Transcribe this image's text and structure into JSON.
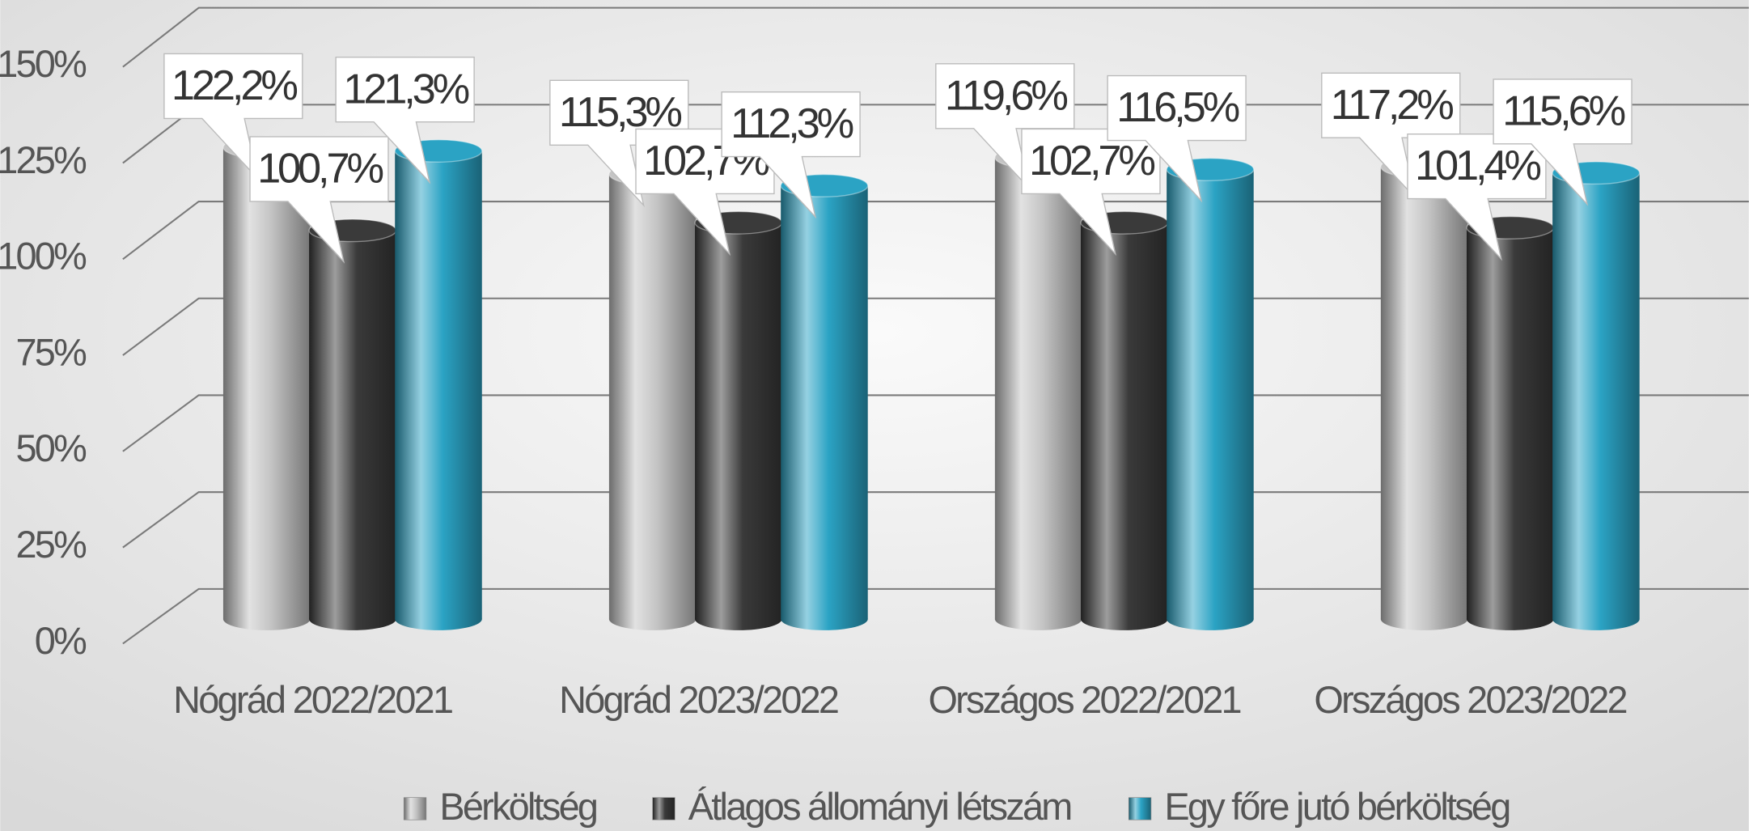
{
  "chart_data": {
    "type": "bar",
    "categories": [
      "Nógrád 2022/2021",
      "Nógrád 2023/2022",
      "Országos 2022/2021",
      "Országos 2023/2022"
    ],
    "series": [
      {
        "name": "Bérköltség",
        "color": "#c4c4c4",
        "values": [
          122.2,
          115.3,
          119.6,
          117.2
        ],
        "value_labels": [
          "122,2%",
          "115,3%",
          "119,6%",
          "117,2%"
        ]
      },
      {
        "name": "Átlagos állományi létszám",
        "color": "#3a3a3a",
        "values": [
          100.7,
          102.7,
          102.7,
          101.4
        ],
        "value_labels": [
          "100,7%",
          "102,7%",
          "102,7%",
          "101,4%"
        ]
      },
      {
        "name": "Egy főre jutó bérköltség",
        "color": "#2ba3c4",
        "values": [
          121.3,
          112.3,
          116.5,
          115.6
        ],
        "value_labels": [
          "121,3%",
          "112,3%",
          "116,5%",
          "115,6%"
        ]
      }
    ],
    "ylim": [
      0,
      150
    ],
    "yticks": [
      {
        "value": 0,
        "label": "0%"
      },
      {
        "value": 25,
        "label": "25%"
      },
      {
        "value": 50,
        "label": "50%"
      },
      {
        "value": 75,
        "label": "75%"
      },
      {
        "value": 100,
        "label": "100%"
      },
      {
        "value": 125,
        "label": "125%"
      },
      {
        "value": 150,
        "label": "150%"
      }
    ],
    "grid": true,
    "legend": "bottom"
  }
}
